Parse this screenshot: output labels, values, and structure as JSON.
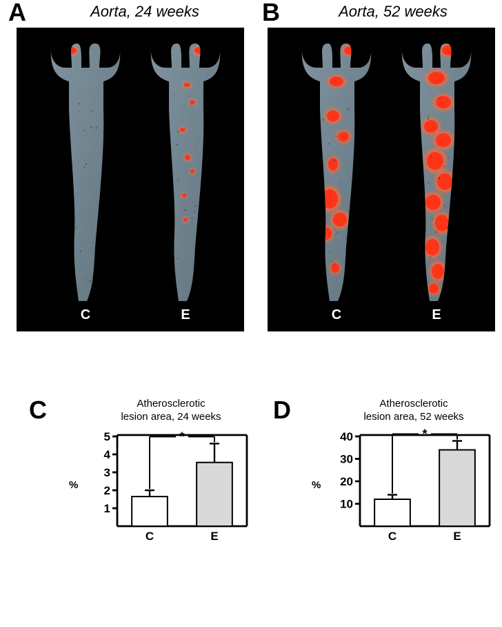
{
  "panel_labels": {
    "A": "A",
    "B": "B",
    "C": "C",
    "D": "D"
  },
  "panelA": {
    "title": "Aorta, 24 weeks",
    "bg_color": "#000000",
    "tissue_color": "#6a7d88",
    "tissue_light": "#8aa0ad",
    "lesion_color": "#ff3015",
    "lesion_glow": "#ff7a50",
    "left_label": "C",
    "right_label": "E",
    "label_color": "#ffffff"
  },
  "panelB": {
    "title": "Aorta, 52 weeks",
    "bg_color": "#000000",
    "tissue_color": "#6a7d88",
    "tissue_light": "#8aa0ad",
    "lesion_color": "#ff3015",
    "lesion_glow": "#ff6a3a",
    "left_label": "C",
    "right_label": "E",
    "label_color": "#ffffff"
  },
  "chartC": {
    "type": "bar",
    "title_line1": "Atherosclerotic",
    "title_line2": "lesion area, 24 weeks",
    "title_fontsize": 15,
    "y_unit": "%",
    "categories": [
      "C",
      "E"
    ],
    "values": [
      1.65,
      3.55
    ],
    "errors": [
      0.35,
      1.05
    ],
    "bar_fill": [
      "#ffffff",
      "#d9d9d9"
    ],
    "bar_stroke": "#000000",
    "ylim": [
      0,
      5
    ],
    "ytick_step": 1,
    "axis_color": "#000000",
    "axis_width": 2.8,
    "bar_width": 0.55,
    "error_width": 2.4,
    "tick_fontsize": 17,
    "cat_fontsize": 17,
    "sig_symbol": "*",
    "sig_fontsize": 18,
    "plot_bg": "#ffffff"
  },
  "chartD": {
    "type": "bar",
    "title_line1": "Atherosclerotic",
    "title_line2": "lesion area, 52 weeks",
    "title_fontsize": 15,
    "y_unit": "%",
    "categories": [
      "C",
      "E"
    ],
    "values": [
      12,
      34
    ],
    "errors": [
      2,
      4
    ],
    "bar_fill": [
      "#ffffff",
      "#d9d9d9"
    ],
    "bar_stroke": "#000000",
    "ylim": [
      0,
      40
    ],
    "ytick_step": 10,
    "axis_color": "#000000",
    "axis_width": 2.8,
    "bar_width": 0.55,
    "error_width": 2.4,
    "tick_fontsize": 17,
    "cat_fontsize": 17,
    "sig_symbol": "*",
    "sig_fontsize": 18,
    "plot_bg": "#ffffff"
  },
  "layout": {
    "label_fontsize": 36,
    "title_fontsize": 22
  }
}
